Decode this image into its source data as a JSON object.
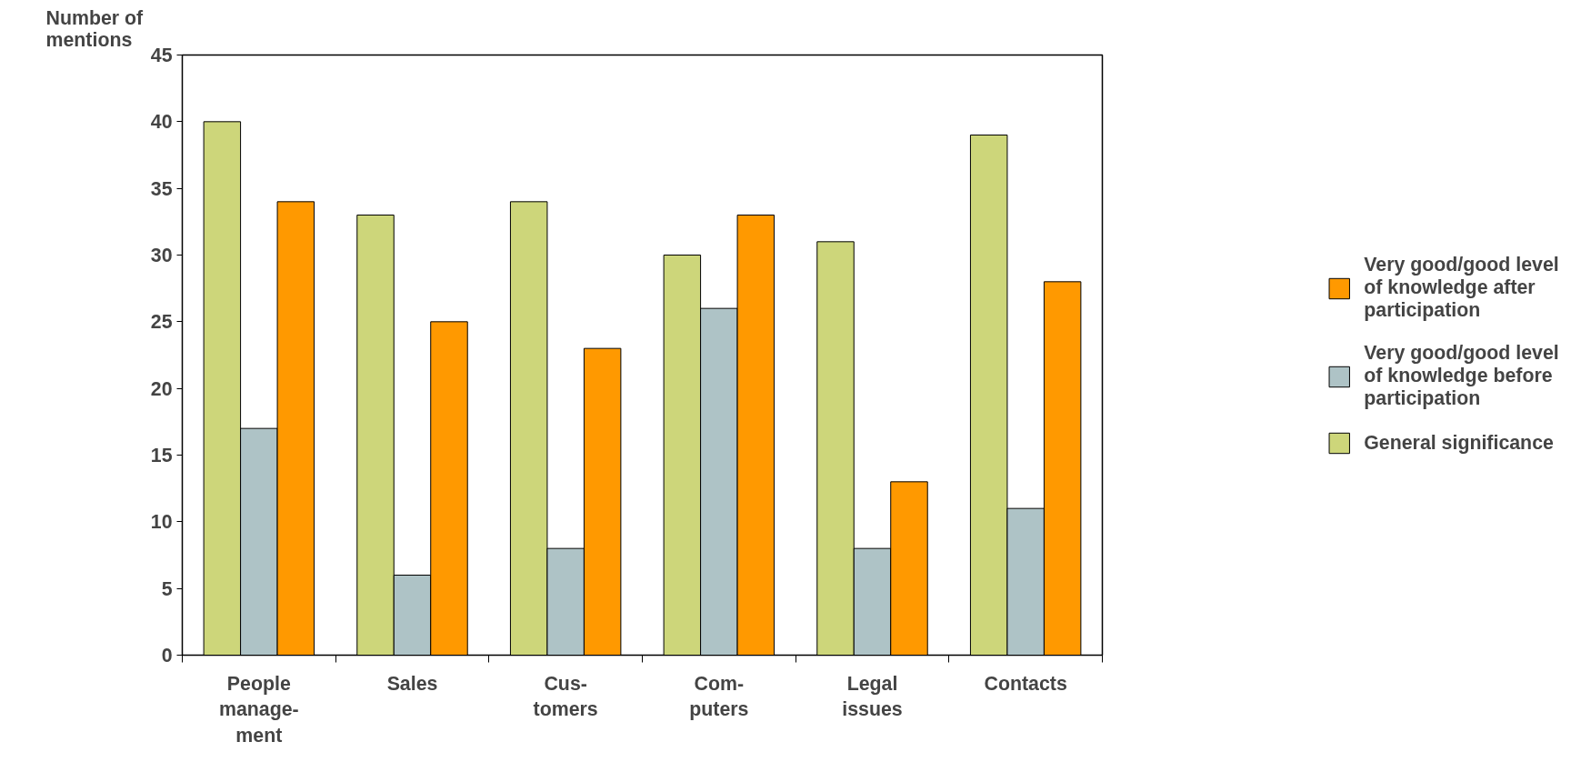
{
  "chart_data": {
    "type": "bar",
    "ylabel": "Number of\nmentions",
    "categories": [
      "People\nmanage-\nment",
      "Sales",
      "Cus-\ntomers",
      "Com-\nputers",
      "Legal\nissues",
      "Contacts"
    ],
    "series": [
      {
        "name": "General significance",
        "color": "#cdd67a",
        "values": [
          40,
          33,
          34,
          30,
          31,
          39
        ]
      },
      {
        "name": "Very good/good level\nof knowledge before\nparticipation",
        "color": "#aec3c6",
        "values": [
          17,
          6,
          8,
          26,
          8,
          11
        ]
      },
      {
        "name": "Very good/good level\nof knowledge after\nparticipation",
        "color": "#ff9900",
        "values": [
          34,
          25,
          23,
          33,
          13,
          28
        ]
      }
    ],
    "ylim": [
      0,
      45
    ],
    "yticks": [
      0,
      5,
      10,
      15,
      20,
      25,
      30,
      35,
      40,
      45
    ],
    "grid": false,
    "legend": "right"
  }
}
